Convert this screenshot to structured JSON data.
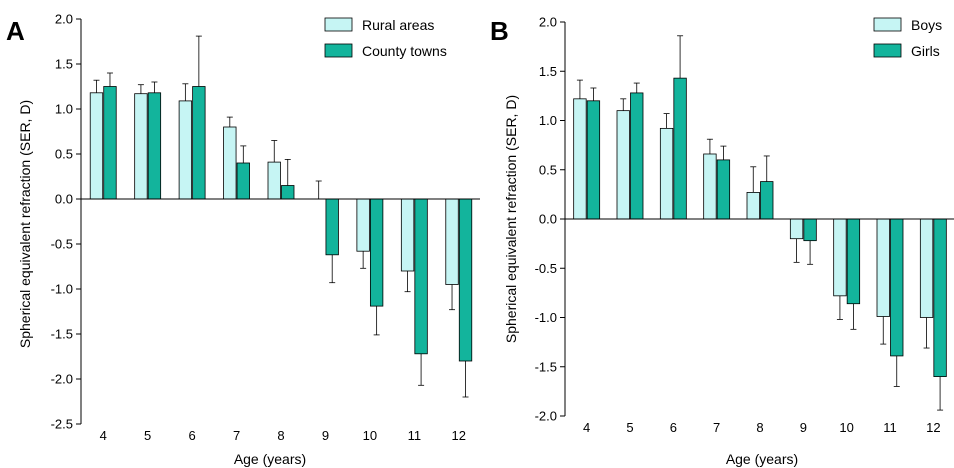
{
  "colors": {
    "series_a": "#c6f5f4",
    "series_b": "#13b49c",
    "stroke": "#000000"
  },
  "chart_data": [
    {
      "type": "bar",
      "panel_label": "A",
      "categories": [
        "4",
        "5",
        "6",
        "7",
        "8",
        "9",
        "10",
        "11",
        "12"
      ],
      "xlabel": "Age (years)",
      "ylabel": "Spherical equivalent refraction (SER, D)",
      "ylim": [
        -2.5,
        2.0
      ],
      "yticks": [
        "2.0",
        "1.5",
        "1.0",
        "0.5",
        "0.0",
        "-0.5",
        "-1.0",
        "-1.5",
        "-2.0",
        "-2.5"
      ],
      "legend_position": "top-right",
      "grid": false,
      "series": [
        {
          "name": "Rural areas",
          "values": [
            1.18,
            1.17,
            1.09,
            0.8,
            0.41,
            0.0,
            -0.58,
            -0.8,
            -0.95
          ],
          "errors": [
            0.14,
            0.1,
            0.19,
            0.11,
            0.24,
            0.2,
            0.19,
            0.23,
            0.28
          ]
        },
        {
          "name": "County towns",
          "values": [
            1.25,
            1.18,
            1.25,
            0.4,
            0.15,
            -0.62,
            -1.19,
            -1.72,
            -1.8
          ],
          "errors": [
            0.15,
            0.12,
            0.56,
            0.19,
            0.29,
            0.31,
            0.32,
            0.35,
            0.4
          ]
        }
      ]
    },
    {
      "type": "bar",
      "panel_label": "B",
      "categories": [
        "4",
        "5",
        "6",
        "7",
        "8",
        "9",
        "10",
        "11",
        "12"
      ],
      "xlabel": "Age (years)",
      "ylabel": "Spherical equivalent refraction (SER, D)",
      "ylim": [
        -2.0,
        2.0
      ],
      "yticks": [
        "2.0",
        "1.5",
        "1.0",
        "0.5",
        "0.0",
        "-0.5",
        "-1.0",
        "-1.5",
        "-2.0"
      ],
      "legend_position": "top-right",
      "grid": false,
      "series": [
        {
          "name": "Boys",
          "values": [
            1.22,
            1.1,
            0.92,
            0.66,
            0.27,
            -0.2,
            -0.78,
            -0.99,
            -1.0
          ],
          "errors": [
            0.19,
            0.12,
            0.15,
            0.15,
            0.26,
            0.24,
            0.24,
            0.28,
            0.31
          ]
        },
        {
          "name": "Girls",
          "values": [
            1.2,
            1.28,
            1.43,
            0.6,
            0.38,
            -0.22,
            -0.86,
            -1.39,
            -1.6
          ],
          "errors": [
            0.13,
            0.1,
            0.43,
            0.14,
            0.26,
            0.24,
            0.26,
            0.31,
            0.34
          ]
        }
      ]
    }
  ]
}
